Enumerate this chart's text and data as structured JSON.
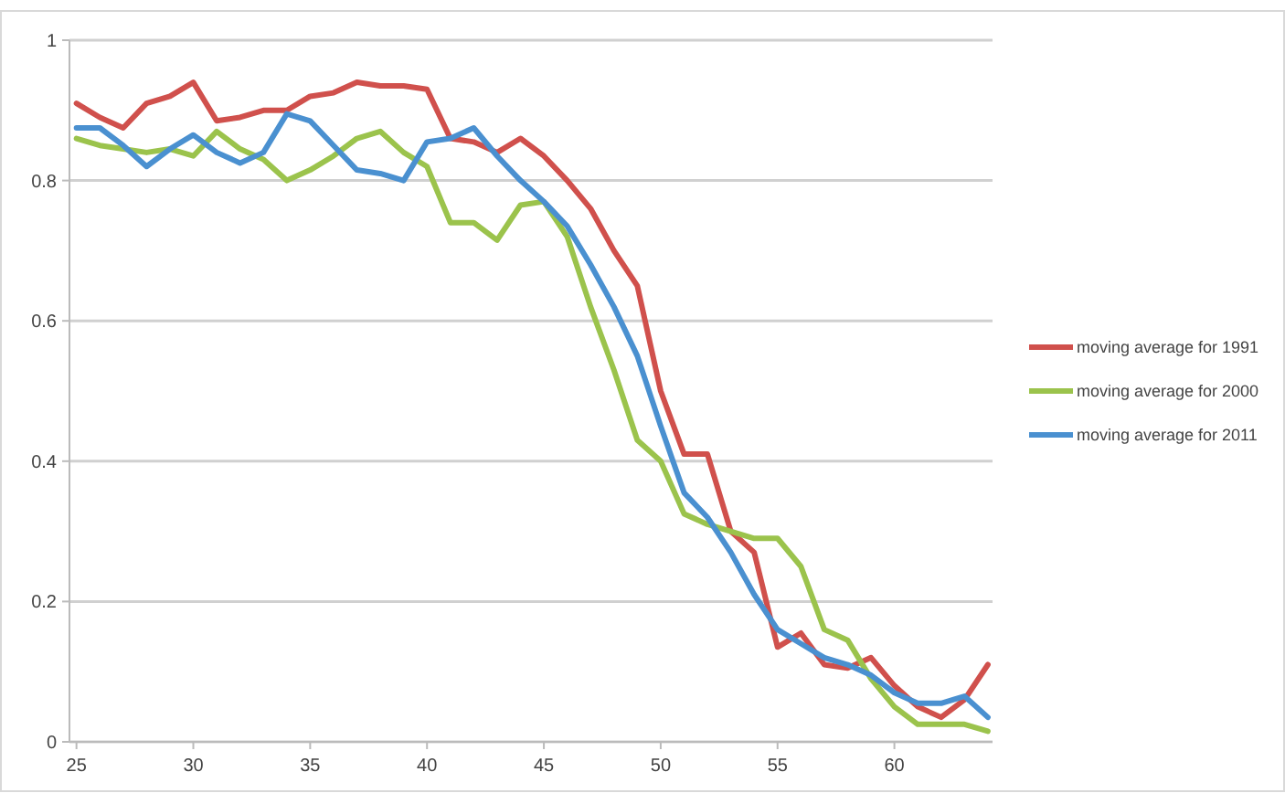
{
  "chart_data": {
    "type": "line",
    "x": [
      25,
      26,
      27,
      28,
      29,
      30,
      31,
      32,
      33,
      34,
      35,
      36,
      37,
      38,
      39,
      40,
      41,
      42,
      43,
      44,
      45,
      46,
      47,
      48,
      49,
      50,
      51,
      52,
      53,
      54,
      55,
      56,
      57,
      58,
      59,
      60,
      61,
      62,
      63,
      64
    ],
    "series": [
      {
        "name": "moving average for 1991",
        "color": "#d0504c",
        "values": [
          0.91,
          0.89,
          0.875,
          0.91,
          0.92,
          0.94,
          0.885,
          0.89,
          0.9,
          0.9,
          0.92,
          0.925,
          0.94,
          0.935,
          0.935,
          0.93,
          0.86,
          0.855,
          0.84,
          0.86,
          0.835,
          0.8,
          0.76,
          0.7,
          0.65,
          0.5,
          0.41,
          0.41,
          0.3,
          0.27,
          0.135,
          0.155,
          0.11,
          0.105,
          0.12,
          0.08,
          0.05,
          0.035,
          0.06,
          0.11
        ]
      },
      {
        "name": "moving average for 2000",
        "color": "#9bc34c",
        "values": [
          0.86,
          0.85,
          0.845,
          0.84,
          0.845,
          0.835,
          0.87,
          0.845,
          0.83,
          0.8,
          0.815,
          0.835,
          0.86,
          0.87,
          0.84,
          0.82,
          0.74,
          0.74,
          0.715,
          0.765,
          0.77,
          0.72,
          0.62,
          0.53,
          0.43,
          0.4,
          0.325,
          0.31,
          0.3,
          0.29,
          0.29,
          0.25,
          0.16,
          0.145,
          0.09,
          0.05,
          0.025,
          0.025,
          0.025,
          0.015
        ]
      },
      {
        "name": "moving average for 2011",
        "color": "#4a90d0",
        "values": [
          0.875,
          0.875,
          0.85,
          0.82,
          0.845,
          0.865,
          0.84,
          0.825,
          0.84,
          0.895,
          0.885,
          0.85,
          0.815,
          0.81,
          0.8,
          0.855,
          0.86,
          0.875,
          0.835,
          0.8,
          0.77,
          0.735,
          0.68,
          0.62,
          0.55,
          0.45,
          0.355,
          0.32,
          0.27,
          0.21,
          0.16,
          0.14,
          0.12,
          0.11,
          0.095,
          0.07,
          0.055,
          0.055,
          0.065,
          0.035
        ]
      }
    ],
    "xlim": [
      24.7,
      64.2
    ],
    "xticks": [
      25,
      30,
      35,
      40,
      45,
      50,
      55,
      60
    ],
    "ylim": [
      0,
      1
    ],
    "yticks": [
      0,
      0.2,
      0.4,
      0.6,
      0.8,
      1
    ],
    "grid": "y",
    "legend": "right",
    "line_style": "solid"
  }
}
